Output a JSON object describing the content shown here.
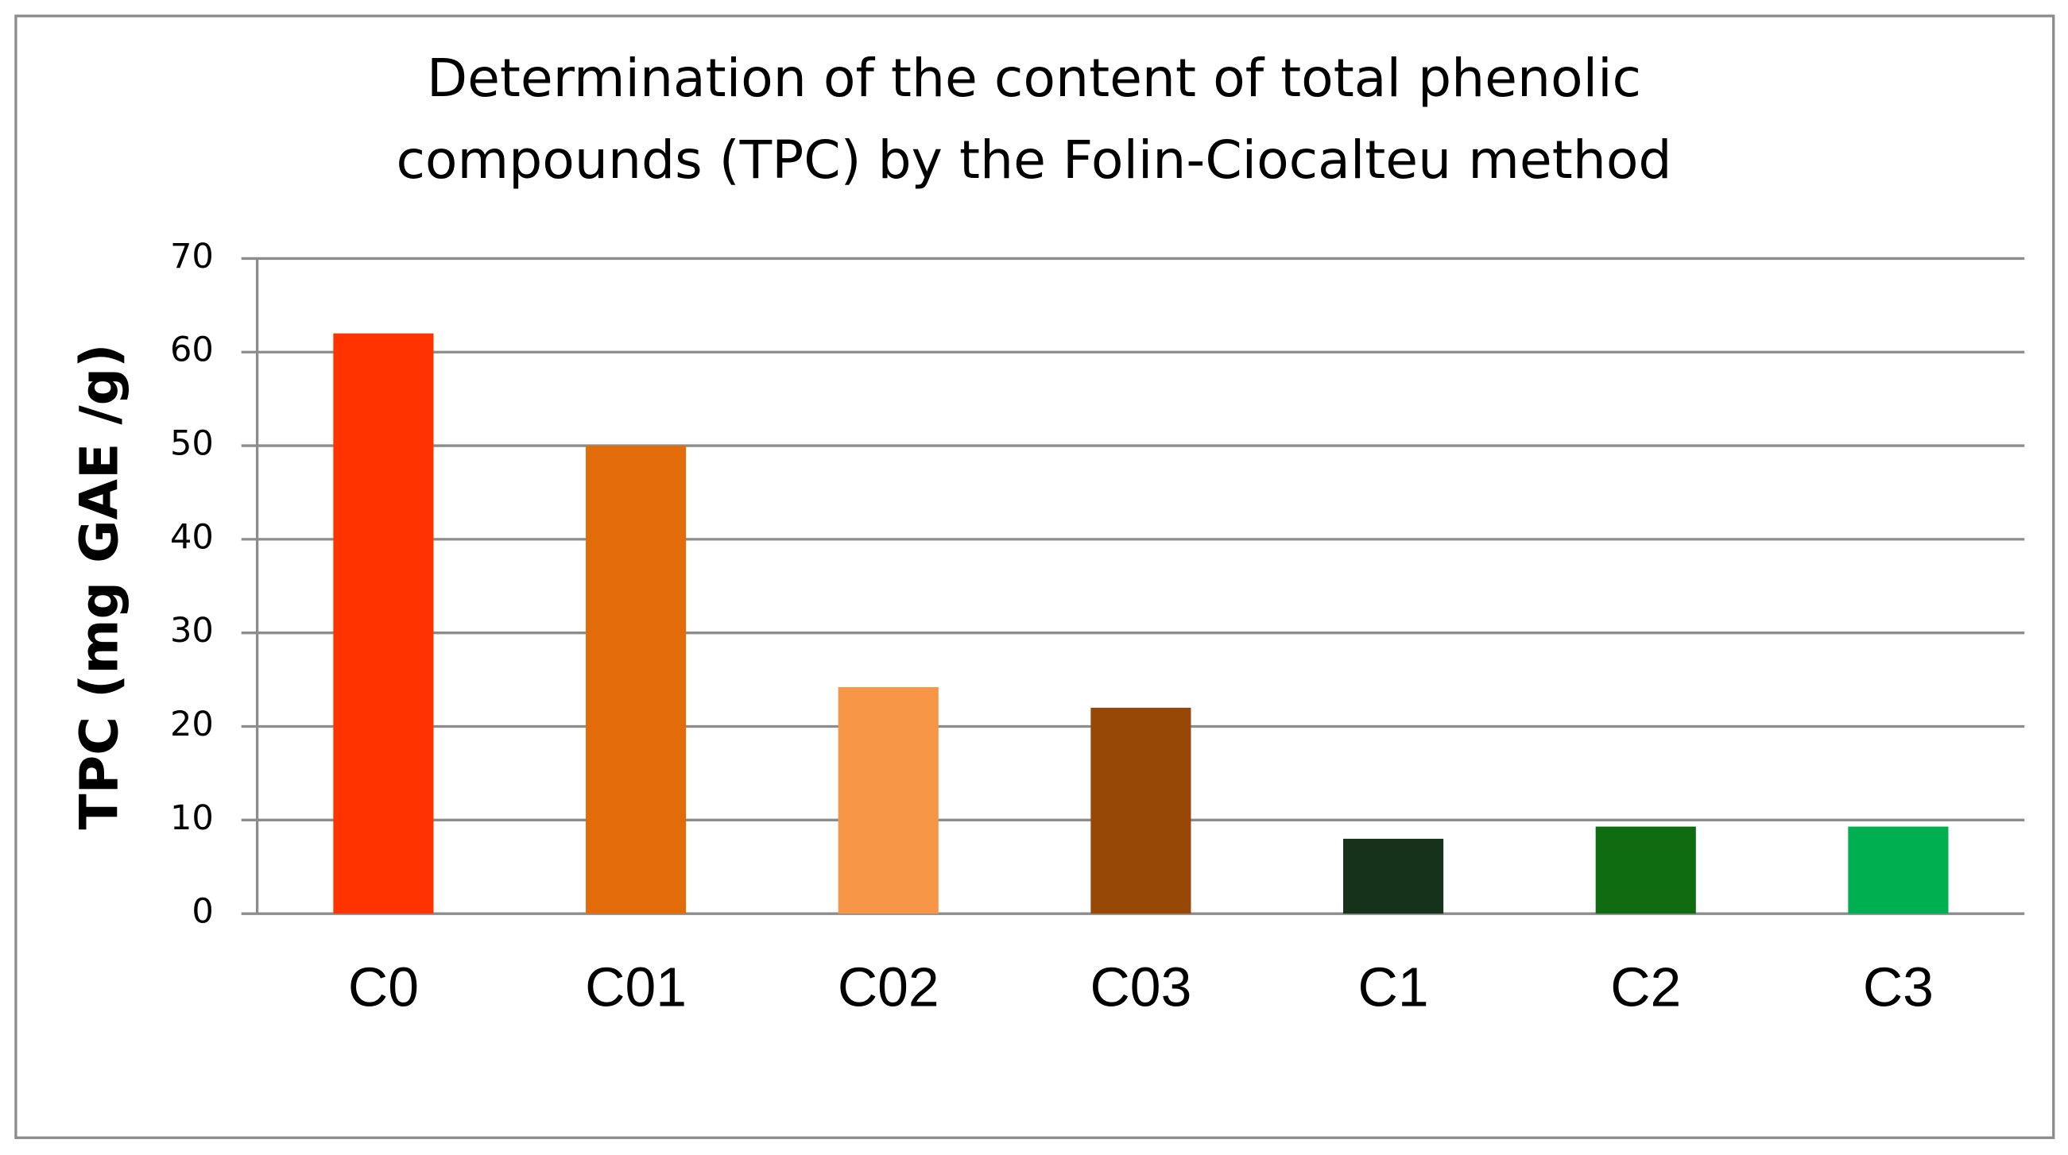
{
  "chart_data": {
    "type": "bar",
    "title": [
      "Determination of the content of total phenolic",
      "compounds (TPC) by the Folin-Ciocalteu method"
    ],
    "y_label": "TPC (mg GAE /g)",
    "categories": [
      "C0",
      "C01",
      "C02",
      "C03",
      "C1",
      "C2",
      "C3"
    ],
    "values": [
      62,
      50,
      24.2,
      22,
      8,
      9.3,
      9.3
    ],
    "colors": [
      "#ff3300",
      "#e36c0a",
      "#f79646",
      "#974706",
      "#17321a",
      "#0f6b10",
      "#00b050"
    ],
    "ylim": [
      0,
      70
    ],
    "yticks": [
      0,
      10,
      20,
      30,
      40,
      50,
      60,
      70
    ],
    "grid": true
  }
}
